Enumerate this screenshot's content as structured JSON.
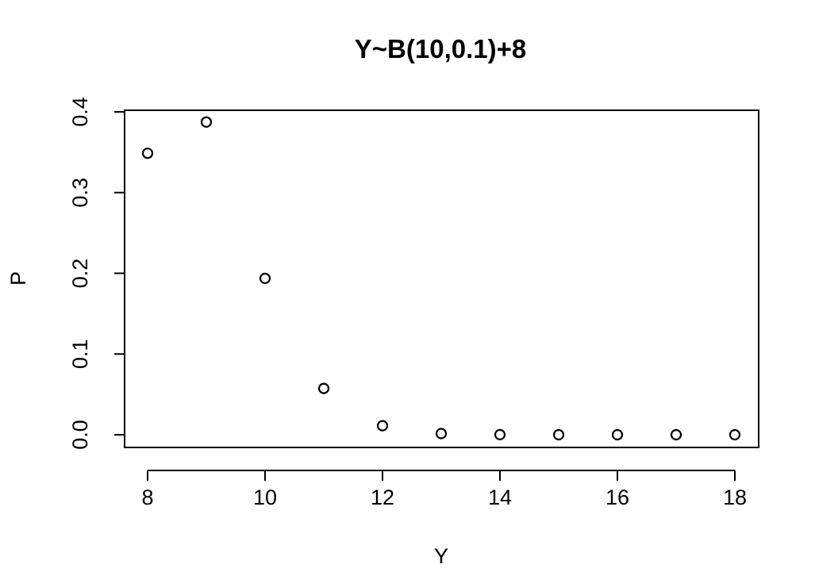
{
  "chart_data": {
    "type": "scatter",
    "title": "Y~B(10,0.1)+8",
    "xlabel": "Y",
    "ylabel": "P",
    "x": [
      8,
      9,
      10,
      11,
      12,
      13,
      14,
      15,
      16,
      17,
      18
    ],
    "y": [
      0.3487,
      0.3874,
      0.1937,
      0.0574,
      0.0112,
      0.0015,
      0.0001,
      0.0,
      0.0,
      0.0,
      0.0
    ],
    "xlim": [
      8,
      18
    ],
    "ylim": [
      0,
      0.4
    ],
    "xticks": [
      8,
      10,
      12,
      14,
      16,
      18
    ],
    "yticks": [
      0.0,
      0.1,
      0.2,
      0.3,
      0.4
    ],
    "xtick_labels": [
      "8",
      "10",
      "12",
      "14",
      "16",
      "18"
    ],
    "ytick_labels": [
      "0.0",
      "0.1",
      "0.2",
      "0.3",
      "0.4"
    ],
    "marker": "open-circle",
    "grid": false,
    "legend": "none"
  }
}
